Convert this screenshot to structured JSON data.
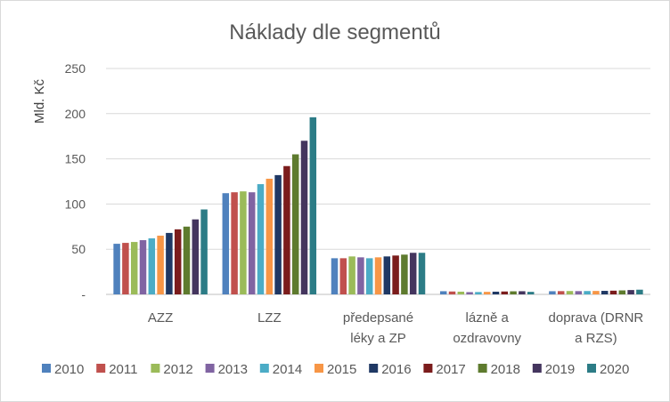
{
  "chart_data": {
    "type": "bar",
    "title": "Náklady dle segmentů",
    "xlabel": "",
    "ylabel": "Mld. Kč",
    "ylim": [
      0,
      250
    ],
    "yticks": [
      {
        "value": 0,
        "label": "-"
      },
      {
        "value": 50,
        "label": "50"
      },
      {
        "value": 100,
        "label": "100"
      },
      {
        "value": 150,
        "label": "150"
      },
      {
        "value": 200,
        "label": "200"
      },
      {
        "value": 250,
        "label": "250"
      }
    ],
    "grid": true,
    "legend_position": "bottom",
    "categories": [
      [
        "AZZ"
      ],
      [
        "LZZ"
      ],
      [
        "předepsané",
        "léky a ZP"
      ],
      [
        "lázně a",
        "ozdravovny"
      ],
      [
        "doprava (DRNR",
        "a RZS)"
      ]
    ],
    "series": [
      {
        "name": "2010",
        "color": "#4f81bd",
        "values": [
          56,
          112,
          40,
          3.5,
          3.5
        ]
      },
      {
        "name": "2011",
        "color": "#c0504d",
        "values": [
          57,
          113,
          40,
          3.2,
          3.6
        ]
      },
      {
        "name": "2012",
        "color": "#9bbb59",
        "values": [
          58,
          114,
          42,
          3.0,
          3.7
        ]
      },
      {
        "name": "2013",
        "color": "#8064a2",
        "values": [
          60,
          113,
          41,
          2.5,
          3.6
        ]
      },
      {
        "name": "2014",
        "color": "#4bacc6",
        "values": [
          62,
          122,
          40,
          2.6,
          3.7
        ]
      },
      {
        "name": "2015",
        "color": "#f79646",
        "values": [
          65,
          128,
          41,
          2.8,
          3.8
        ]
      },
      {
        "name": "2016",
        "color": "#1f3864",
        "values": [
          68,
          132,
          42,
          3.0,
          3.9
        ]
      },
      {
        "name": "2017",
        "color": "#7b1c1c",
        "values": [
          72,
          142,
          43,
          3.2,
          4.1
        ]
      },
      {
        "name": "2018",
        "color": "#5e7b2e",
        "values": [
          75,
          155,
          44,
          3.4,
          4.4
        ]
      },
      {
        "name": "2019",
        "color": "#44355e",
        "values": [
          83,
          170,
          46,
          3.5,
          4.8
        ]
      },
      {
        "name": "2020",
        "color": "#2c7c86",
        "values": [
          94,
          196,
          46,
          2.8,
          5.2
        ]
      }
    ]
  }
}
